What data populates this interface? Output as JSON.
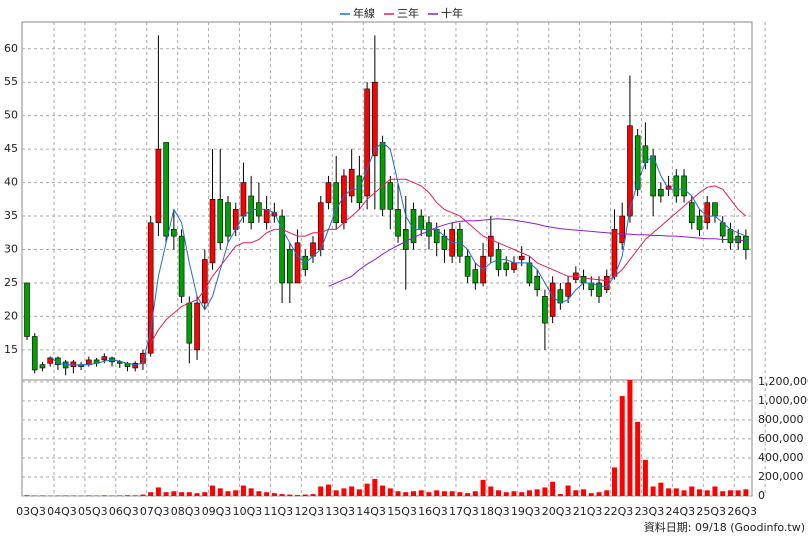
{
  "chart_data": [
    {
      "type": "candlestick",
      "categories": [
        "03Q3",
        null,
        null,
        null,
        "04Q3",
        null,
        null,
        null,
        "05Q3",
        null,
        null,
        null,
        "06Q3",
        null,
        null,
        null,
        "07Q3",
        null,
        null,
        null,
        "08Q3",
        null,
        null,
        null,
        "09Q3",
        null,
        null,
        null,
        "10Q3",
        null,
        null,
        null,
        "11Q3",
        null,
        null,
        null,
        "12Q3",
        null,
        null,
        null,
        "13Q3",
        null,
        null,
        null,
        "14Q3",
        null,
        null,
        null,
        "15Q3",
        null,
        null,
        null,
        "16Q3",
        null,
        null,
        null,
        "17Q3",
        null,
        null,
        null,
        "18Q3",
        null,
        null,
        null,
        "19Q3",
        null,
        null,
        null,
        "20Q3",
        null,
        null,
        null,
        "21Q3",
        null,
        null,
        null,
        "22Q3",
        null,
        null,
        null,
        "23Q3",
        null,
        null,
        null,
        "24Q3",
        null,
        null,
        null,
        "25Q3",
        null,
        null,
        null,
        "26Q3",
        null
      ],
      "open": [
        25,
        17,
        12.8,
        13,
        13.8,
        13.2,
        12.5,
        12.8,
        12.8,
        13.5,
        13.5,
        13.8,
        13.2,
        13,
        12.3,
        13,
        14.5,
        34,
        46,
        33,
        32,
        22,
        15,
        22,
        28,
        37.5,
        37,
        33,
        35,
        38,
        37,
        34,
        35,
        35,
        30,
        25,
        29,
        29,
        30,
        37,
        40,
        34,
        38,
        41,
        38,
        44,
        46,
        40,
        36,
        33,
        36,
        35,
        34,
        33,
        32,
        29,
        33,
        29,
        27,
        25,
        29,
        30,
        28,
        27,
        28.5,
        28,
        26,
        23,
        20,
        24,
        23,
        25.5,
        26,
        25,
        25,
        24,
        26,
        31,
        35,
        47,
        45.5,
        44,
        39,
        39,
        41,
        41,
        37,
        35,
        34,
        37,
        34,
        33,
        32,
        32
      ],
      "high": [
        25,
        17.5,
        13.2,
        14,
        14,
        13.5,
        13.5,
        13.2,
        14,
        13.8,
        14.5,
        14,
        13.5,
        13.2,
        13.3,
        15,
        35,
        62,
        46,
        36,
        33,
        23,
        23,
        30,
        45,
        45,
        38,
        37,
        43,
        41,
        40,
        38,
        37,
        36,
        31,
        33,
        30,
        32,
        38,
        41,
        44,
        42,
        45,
        44,
        55,
        62,
        47,
        41,
        40,
        38,
        37,
        36,
        35,
        34,
        33,
        34,
        34,
        30,
        28,
        31,
        35,
        31,
        29,
        29,
        30.5,
        29,
        27,
        24,
        26,
        25,
        26,
        27.5,
        27,
        26,
        26,
        27,
        36,
        37,
        56,
        48,
        49,
        45,
        40,
        41,
        42,
        42,
        38,
        36,
        38,
        37,
        35,
        34,
        33,
        33
      ],
      "low": [
        16.5,
        11.5,
        11.8,
        12.5,
        12,
        11.2,
        11.5,
        12,
        12.5,
        12.5,
        13,
        12.5,
        12.3,
        11.8,
        11.8,
        12,
        14,
        32,
        31,
        30,
        22,
        13,
        13.5,
        21,
        27,
        30,
        31,
        32,
        34,
        33,
        34,
        33,
        34,
        22,
        22,
        25,
        26,
        28,
        29,
        36,
        33,
        33,
        37,
        36,
        36,
        36,
        35,
        33,
        31,
        24,
        30,
        32,
        30,
        29,
        28,
        28,
        28,
        25,
        24,
        24.5,
        28,
        26,
        26,
        26.5,
        27.5,
        24.5,
        23,
        15,
        19,
        21,
        22,
        25,
        24,
        23,
        22,
        23.5,
        25.5,
        30,
        34,
        38,
        42,
        35,
        37,
        38,
        37,
        37,
        33,
        32,
        33,
        34,
        31,
        30,
        30,
        28.5
      ],
      "close": [
        17,
        12,
        12.3,
        13.8,
        12.8,
        12.3,
        13.2,
        12.5,
        13.5,
        13,
        14,
        13.2,
        13,
        12.5,
        13,
        14.5,
        34,
        45,
        32,
        32,
        23,
        16,
        22,
        28.5,
        37.5,
        31,
        32,
        36,
        40,
        34,
        35,
        36,
        35.5,
        25,
        25,
        31,
        27,
        31,
        37,
        40,
        34,
        41,
        42,
        37,
        54,
        55,
        36,
        36,
        32,
        30,
        31,
        33,
        32,
        31,
        30,
        33,
        29,
        26,
        25,
        29,
        32,
        27,
        27,
        28,
        29,
        25,
        24,
        19,
        25,
        22,
        25,
        26.5,
        25,
        24,
        23,
        26,
        33,
        35,
        48.5,
        39,
        43,
        38,
        38,
        39.5,
        38,
        38,
        34,
        33,
        37,
        35,
        32,
        31,
        31,
        30
      ],
      "up_color": "#ff0000",
      "down_color": "#00a000",
      "series": [
        {
          "name": "年線",
          "color": "#1f6fd0",
          "values": [
            null,
            null,
            null,
            14,
            13,
            12.8,
            12.7,
            12.8,
            12.8,
            13,
            13.3,
            13.5,
            13.3,
            13,
            12.8,
            13,
            18,
            26,
            31,
            36,
            34,
            28,
            23,
            21,
            23,
            27,
            31,
            33,
            35,
            36,
            36,
            36,
            35.5,
            33,
            31,
            29,
            28,
            29,
            30,
            33,
            36,
            38,
            39,
            39,
            42,
            45,
            46,
            45,
            40,
            35,
            33,
            33,
            33,
            33,
            32,
            31,
            31,
            30,
            28,
            27,
            28,
            28.5,
            28.5,
            28,
            28,
            28,
            27,
            25,
            23,
            22,
            22.5,
            24,
            25,
            25,
            24.5,
            24.5,
            26,
            29,
            36,
            40,
            43,
            44,
            41,
            39,
            39,
            39,
            38,
            36,
            35,
            35,
            34,
            33,
            32.5,
            32
          ]
        },
        {
          "name": "三年",
          "color": "#e0205a",
          "values": [
            null,
            null,
            null,
            null,
            null,
            null,
            null,
            null,
            null,
            null,
            null,
            null,
            null,
            null,
            null,
            null,
            16,
            18,
            19.5,
            20.5,
            21.5,
            22,
            22.5,
            24,
            26,
            27.5,
            29,
            30.5,
            31,
            31,
            31.5,
            32.5,
            33,
            33,
            32.5,
            32,
            32,
            32.5,
            32.5,
            33,
            33,
            34,
            35,
            36,
            37.5,
            38.5,
            39.5,
            40.5,
            40.5,
            40.5,
            40,
            39.5,
            38.5,
            37,
            36,
            35.5,
            35,
            34,
            33,
            32,
            31.5,
            31,
            30.5,
            30,
            29.5,
            29,
            28,
            27.5,
            27,
            26.5,
            26,
            26,
            25.8,
            25.6,
            25.5,
            25.3,
            26,
            27,
            28.5,
            30,
            31.5,
            32.5,
            33.5,
            34.5,
            35.5,
            36.5,
            37.5,
            38.5,
            39.3,
            39.5,
            39,
            37.5,
            36,
            35
          ]
        },
        {
          "name": "十年",
          "color": "#8a22c8",
          "values": [
            null,
            null,
            null,
            null,
            null,
            null,
            null,
            null,
            null,
            null,
            null,
            null,
            null,
            null,
            null,
            null,
            null,
            null,
            null,
            null,
            null,
            null,
            null,
            null,
            null,
            null,
            null,
            null,
            null,
            null,
            null,
            null,
            null,
            null,
            null,
            null,
            null,
            null,
            null,
            24.5,
            25,
            25.5,
            26,
            27,
            27.8,
            28.5,
            29.3,
            30,
            30.6,
            31.2,
            31.8,
            32.3,
            32.8,
            33.3,
            33.7,
            34,
            34.2,
            34.3,
            34.3,
            34.4,
            34.5,
            34.6,
            34.5,
            34.4,
            34.2,
            34,
            33.8,
            33.5,
            33.3,
            33.1,
            33,
            32.9,
            32.8,
            32.7,
            32.6,
            32.5,
            32.4,
            32.3,
            32.3,
            32.2,
            32.2,
            32.1,
            32.1,
            32,
            32,
            31.9,
            31.8,
            31.7,
            31.6,
            31.6,
            31.5,
            31.5,
            31.4,
            31.3
          ]
        }
      ],
      "ylim": [
        10.5,
        64
      ],
      "yticks": [
        15,
        20,
        25,
        30,
        35,
        40,
        45,
        50,
        55,
        60
      ],
      "grid": true,
      "source": "資料日期: 09/18 (Goodinfo.tw)"
    },
    {
      "type": "bar",
      "color": "#ff0000",
      "values": [
        8000,
        5000,
        6000,
        4000,
        5000,
        6000,
        5000,
        4000,
        6000,
        5000,
        7000,
        5000,
        6000,
        8000,
        7000,
        15000,
        40000,
        90000,
        40000,
        50000,
        40000,
        40000,
        30000,
        40000,
        110000,
        80000,
        50000,
        60000,
        110000,
        80000,
        50000,
        40000,
        30000,
        20000,
        15000,
        10000,
        15000,
        20000,
        100000,
        120000,
        60000,
        80000,
        100000,
        70000,
        130000,
        180000,
        110000,
        80000,
        50000,
        40000,
        50000,
        60000,
        40000,
        60000,
        50000,
        50000,
        40000,
        30000,
        50000,
        170000,
        100000,
        60000,
        40000,
        50000,
        40000,
        60000,
        70000,
        90000,
        150000,
        20000,
        110000,
        60000,
        70000,
        30000,
        40000,
        60000,
        300000,
        1050000,
        1220000,
        780000,
        380000,
        100000,
        140000,
        80000,
        80000,
        60000,
        100000,
        70000,
        60000,
        100000,
        50000,
        60000,
        60000,
        70000
      ],
      "ylim": [
        0,
        1230000
      ],
      "yticks": [
        0,
        {
          "value": 200000,
          "label": "200,000"
        },
        {
          "value": 400000,
          "label": "400,000"
        },
        {
          "value": 600000,
          "label": "600,000"
        },
        {
          "value": 800000,
          "label": "800,000"
        },
        {
          "value": 1000000,
          "label": "1,000,000"
        },
        {
          "value": 1200000,
          "label": "1,200,000"
        }
      ],
      "grid": true
    }
  ]
}
